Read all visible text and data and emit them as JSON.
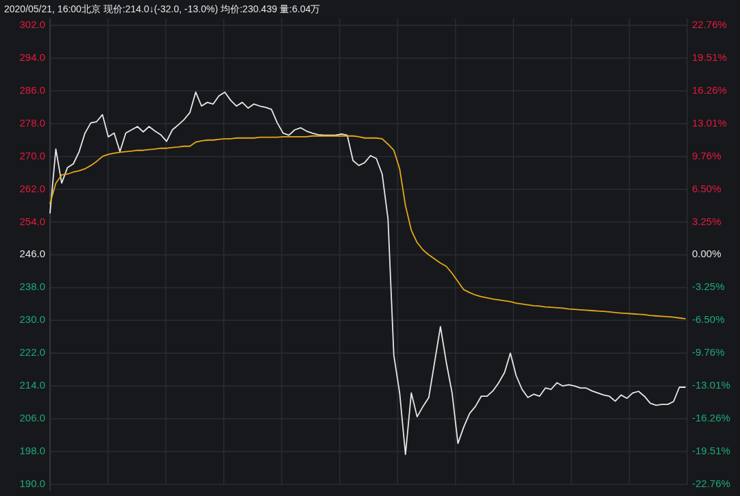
{
  "chart_data": {
    "type": "line",
    "title": "2020/05/21, 16:00北京 现价:214.0↓(-32.0, -13.0%)   均价:230.439 量:6.04万",
    "categories": [
      null,
      null,
      null,
      null,
      null,
      null,
      null,
      null,
      null,
      null,
      null,
      null,
      null,
      null,
      null,
      null,
      null,
      null,
      null,
      null,
      null,
      null,
      null,
      null,
      null,
      null,
      null,
      null,
      null,
      null,
      null,
      null,
      null,
      null,
      null,
      null,
      null,
      null,
      null,
      null,
      null,
      null,
      null,
      null,
      null,
      null,
      null,
      null,
      null,
      null,
      null,
      null,
      null,
      null,
      null,
      null,
      null,
      null,
      null,
      null,
      null,
      null,
      null,
      null,
      null,
      null,
      null,
      null,
      null,
      null,
      null,
      null,
      null,
      null,
      null,
      null,
      null,
      null,
      null,
      null,
      null,
      null,
      null,
      null,
      null,
      null,
      null,
      null,
      null,
      null,
      null,
      null,
      null,
      null,
      null,
      null,
      null,
      null,
      null,
      null,
      null,
      null,
      null,
      null,
      null,
      null,
      null,
      null,
      null,
      null
    ],
    "series": [
      {
        "color": "#e8e8e8",
        "values": [
          256.2,
          271.8,
          263.5,
          267.3,
          268.2,
          271.2,
          275.7,
          278.2,
          278.5,
          280.2,
          274.8,
          275.7,
          271.2,
          275.7,
          276.5,
          277.3,
          276,
          277.3,
          276.2,
          275.3,
          273.7,
          276.5,
          277.7,
          279,
          280.7,
          285.7,
          282.3,
          283.2,
          282.8,
          284.8,
          285.7,
          283.7,
          282.3,
          283.2,
          281.8,
          282.8,
          282.3,
          282,
          281.5,
          278.2,
          275.7,
          275.2,
          276.5,
          277,
          276.2,
          275.7,
          275.3,
          275.2,
          275.2,
          275.2,
          275.5,
          275.2,
          269,
          267.8,
          268.5,
          270.2,
          269.5,
          265.7,
          254.8,
          221.5,
          212.3,
          197.3,
          212.3,
          206.5,
          209,
          211.2,
          219.8,
          228.5,
          219.8,
          212.3,
          200,
          204,
          207.3,
          209,
          211.5,
          211.5,
          212.8,
          214.8,
          217.3,
          222,
          216.5,
          213.2,
          211.2,
          212,
          211.5,
          213.5,
          213.2,
          214.8,
          214,
          214.3,
          214,
          213.5,
          213.5,
          212.8,
          212.3,
          211.8,
          211.5,
          210.3,
          211.8,
          211,
          212.3,
          212.7,
          211.5,
          209.8,
          209.3,
          209.5,
          209.5,
          210.2,
          213.7,
          213.7
        ]
      },
      {
        "color": "#e6a817",
        "values": [
          258.5,
          263.5,
          265.5,
          265.7,
          266.2,
          266.5,
          267,
          267.8,
          268.8,
          270,
          270.5,
          270.8,
          271,
          271.2,
          271.3,
          271.5,
          271.5,
          271.7,
          271.8,
          272,
          272,
          272.2,
          272.3,
          272.5,
          272.5,
          273.5,
          273.8,
          274,
          274,
          274.2,
          274.3,
          274.3,
          274.5,
          274.5,
          274.5,
          274.5,
          274.7,
          274.7,
          274.7,
          274.7,
          274.8,
          274.8,
          274.8,
          274.8,
          274.8,
          275,
          275,
          275,
          275,
          275,
          275,
          275,
          275,
          274.8,
          274.5,
          274.5,
          274.5,
          274.3,
          273,
          271.5,
          267,
          258,
          252,
          249,
          247.2,
          246,
          245,
          244,
          243.2,
          241.5,
          239.5,
          237.5,
          236.8,
          236.2,
          235.8,
          235.5,
          235.2,
          235,
          234.8,
          234.6,
          234.2,
          234,
          233.8,
          233.6,
          233.5,
          233.3,
          233.2,
          233.1,
          233,
          232.8,
          232.7,
          232.6,
          232.5,
          232.4,
          232.3,
          232.2,
          232.1,
          231.9,
          231.8,
          231.7,
          231.6,
          231.5,
          231.4,
          231.2,
          231.1,
          231,
          230.9,
          230.8,
          230.6,
          230.4
        ]
      }
    ],
    "ylim": [
      190,
      302
    ],
    "yticks": [
      {
        "value": 190,
        "label": "190.0"
      },
      {
        "value": 198,
        "label": "198.0"
      },
      {
        "value": 206,
        "label": "206.0"
      },
      {
        "value": 214,
        "label": "214.0"
      },
      {
        "value": 222,
        "label": "222.0"
      },
      {
        "value": 230,
        "label": "230.0"
      },
      {
        "value": 238,
        "label": "238.0"
      },
      {
        "value": 246,
        "label": "246.0"
      },
      {
        "value": 254,
        "label": "254.0"
      },
      {
        "value": 262,
        "label": "262.0"
      },
      {
        "value": 270,
        "label": "270.0"
      },
      {
        "value": 278,
        "label": "278.0"
      },
      {
        "value": 286,
        "label": "286.0"
      },
      {
        "value": 294,
        "label": "294.0"
      },
      {
        "value": 302,
        "label": "302.0"
      }
    ],
    "y2lim": [
      -22.76,
      22.76
    ],
    "y2ticks": [
      {
        "value": -22.76,
        "label": "-22.76%"
      },
      {
        "value": -19.51,
        "label": "-19.51%"
      },
      {
        "value": -16.26,
        "label": "-16.26%"
      },
      {
        "value": -13.01,
        "label": "-13.01%"
      },
      {
        "value": -9.76,
        "label": "-9.76%"
      },
      {
        "value": -6.5,
        "label": "-6.50%"
      },
      {
        "value": -3.25,
        "label": "-3.25%"
      },
      {
        "value": 0,
        "label": "0.00%"
      },
      {
        "value": 3.25,
        "label": "3.25%"
      },
      {
        "value": 6.5,
        "label": "6.50%"
      },
      {
        "value": 9.76,
        "label": "9.76%"
      },
      {
        "value": 13.01,
        "label": "13.01%"
      },
      {
        "value": 16.26,
        "label": "16.26%"
      },
      {
        "value": 19.51,
        "label": "19.51%"
      },
      {
        "value": 22.76,
        "label": "22.76%"
      }
    ],
    "grid": true,
    "tick_labels": "y",
    "line_style": "solid"
  }
}
